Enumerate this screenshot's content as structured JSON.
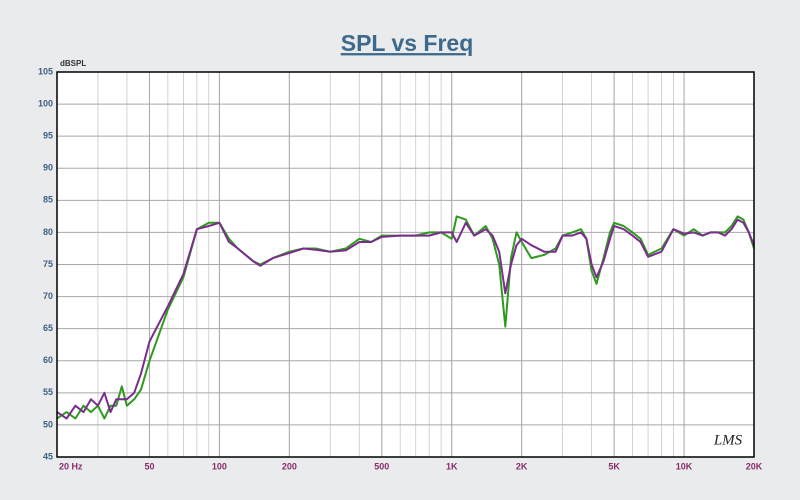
{
  "chart_data": {
    "type": "line",
    "title": "SPL vs Freq",
    "ylabel": "dBSPL",
    "watermark": "LMS",
    "x": [
      20,
      22,
      24,
      26,
      28,
      30,
      32,
      34,
      36,
      38,
      40,
      43,
      46,
      50,
      60,
      70,
      80,
      90,
      100,
      110,
      120,
      140,
      150,
      170,
      200,
      230,
      260,
      300,
      350,
      400,
      450,
      500,
      600,
      700,
      800,
      900,
      1000,
      1050,
      1150,
      1250,
      1400,
      1500,
      1600,
      1700,
      1800,
      1900,
      2000,
      2200,
      2500,
      2800,
      3000,
      3300,
      3600,
      3800,
      4000,
      4200,
      4500,
      4800,
      5000,
      5500,
      6000,
      6500,
      7000,
      8000,
      9000,
      10000,
      11000,
      12000,
      13000,
      14000,
      15000,
      16000,
      17000,
      18000,
      19000,
      20000
    ],
    "series": [
      {
        "color": "#2e9a1e",
        "values": [
          51,
          52,
          51,
          53,
          52,
          53,
          51,
          53,
          53,
          56,
          53,
          54,
          55.5,
          60,
          68,
          73,
          80.5,
          81.5,
          81.5,
          79,
          77.5,
          75.5,
          75,
          76,
          77,
          77.5,
          77.5,
          77,
          77.5,
          79,
          78.5,
          79.5,
          79.5,
          79.5,
          80,
          80,
          79,
          82.5,
          82,
          79.5,
          81,
          79,
          75,
          65.3,
          76,
          80,
          78.5,
          76,
          76.5,
          77.5,
          79.5,
          80,
          80.5,
          79,
          74,
          72,
          76,
          80,
          81.5,
          81,
          80,
          79,
          76.5,
          77.5,
          80.5,
          79.5,
          80.5,
          79.5,
          80,
          80,
          80,
          81,
          82.5,
          82,
          80,
          77.5
        ]
      },
      {
        "color": "#7b2d8e",
        "values": [
          52,
          51,
          53,
          52,
          54,
          53,
          55,
          52,
          54,
          54,
          54,
          55,
          58,
          63,
          68.5,
          73.5,
          80.5,
          81,
          81.5,
          78.5,
          77.5,
          75.5,
          74.8,
          76,
          76.8,
          77.5,
          77.3,
          77,
          77.2,
          78.5,
          78.5,
          79.3,
          79.5,
          79.5,
          79.5,
          80,
          80,
          78.5,
          81.5,
          79.5,
          80.5,
          79.5,
          77,
          70.5,
          75,
          78,
          79,
          78,
          77,
          77,
          79.5,
          79.5,
          80,
          79,
          75,
          73,
          75.5,
          79,
          81,
          80.5,
          79.5,
          78.5,
          76.2,
          77,
          80.5,
          79.8,
          80,
          79.5,
          80,
          80,
          79.5,
          80.5,
          82,
          81.5,
          80,
          78
        ]
      }
    ],
    "log_x": true,
    "grid": true,
    "xlim": [
      20,
      20000
    ],
    "ylim": [
      45,
      105
    ],
    "xticks": [
      {
        "value": 20,
        "label": "20 Hz"
      },
      50,
      100,
      200,
      500,
      {
        "value": 1000,
        "label": "1K"
      },
      {
        "value": 2000,
        "label": "2K"
      },
      {
        "value": 5000,
        "label": "5K"
      },
      {
        "value": 10000,
        "label": "10K"
      },
      {
        "value": 20000,
        "label": "20K"
      }
    ],
    "yticks": [
      45,
      50,
      55,
      60,
      65,
      70,
      75,
      80,
      85,
      90,
      95,
      100,
      105
    ]
  }
}
